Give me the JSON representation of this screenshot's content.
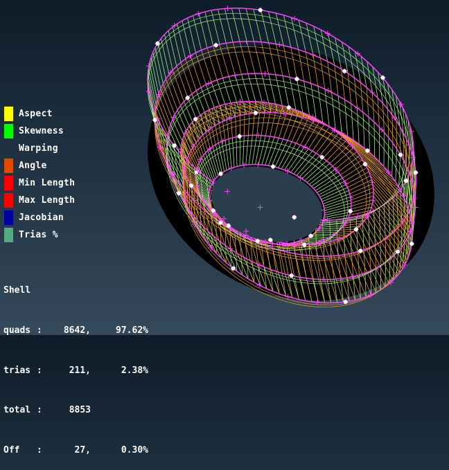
{
  "legend": [
    {
      "label": "Aspect",
      "color": "#ffff00"
    },
    {
      "label": "Skewness",
      "color": "#00ff00"
    },
    {
      "label": "Warping",
      "color": ""
    },
    {
      "label": "Angle",
      "color": "#e04a00"
    },
    {
      "label": "Min Length",
      "color": "#ff0000"
    },
    {
      "label": "Max Length",
      "color": "#ff0000"
    },
    {
      "label": "Jacobian",
      "color": "#0000a0"
    },
    {
      "label": "Trias %",
      "color": "#55aa80"
    }
  ],
  "stats": {
    "title": "Shell",
    "rows": [
      {
        "name": "quads",
        "sep": ":",
        "count": "8642,",
        "pct": "97.62%"
      },
      {
        "name": "trias",
        "sep": ":",
        "count": "211,",
        "pct": "2.38%"
      },
      {
        "name": "total",
        "sep": ":",
        "count": "8853",
        "pct": ""
      },
      {
        "name": "Off",
        "sep": ":",
        "count": "27,",
        "pct": "0.30%"
      }
    ]
  },
  "mesh_colors": {
    "quad": "#e8a020",
    "skew": "#a0f080",
    "edge": "#ff40ff",
    "free_edge": "#40e0e0",
    "background": "#000000"
  }
}
